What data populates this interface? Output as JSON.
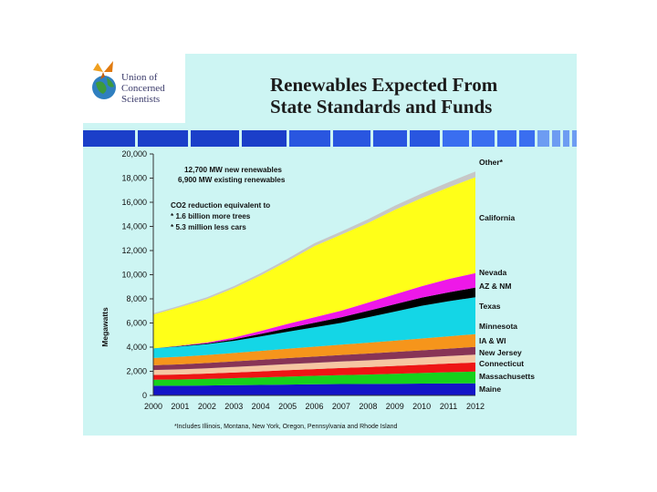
{
  "logo": {
    "lines": [
      "Union of",
      "Concerned",
      "Scientists"
    ]
  },
  "title": {
    "line1": "Renewables Expected From",
    "line2": "State Standards and Funds"
  },
  "annotations": {
    "line1": "12,700 MW new renewables",
    "line2": "6,900 MW existing renewables",
    "line3": "CO2 reduction equivalent to",
    "line4": "* 1.6 billion more trees",
    "line5": "* 5.3 million less cars"
  },
  "footnote": "*Includes Illinois, Montana, New York, Oregon, Pennsylvania and Rhode Island",
  "colors": {
    "slide_bg": "#cdf5f3",
    "banner": [
      "#1b3fc9",
      "#2956e0",
      "#3a6ef0",
      "#6d9cf2",
      "#a8c6f0"
    ]
  },
  "chart_data": {
    "type": "area",
    "stacked": true,
    "title": "Renewables Expected From State Standards and Funds",
    "xlabel": "",
    "ylabel": "Megawatts",
    "ylim": [
      0,
      20000
    ],
    "yticks": [
      0,
      2000,
      4000,
      6000,
      8000,
      10000,
      12000,
      14000,
      16000,
      18000,
      20000
    ],
    "ytick_labels": [
      "0",
      "2,000",
      "4,000",
      "6,000",
      "8,000",
      "10,000",
      "12,000",
      "14,000",
      "16,000",
      "18,000",
      "20,000"
    ],
    "x": [
      "2000",
      "2001",
      "2002",
      "2003",
      "2004",
      "2005",
      "2006",
      "2007",
      "2008",
      "2009",
      "2010",
      "2011",
      "2012"
    ],
    "series": [
      {
        "name": "Maine",
        "color": "#1414c8",
        "values": [
          800,
          800,
          820,
          850,
          870,
          900,
          920,
          940,
          950,
          960,
          980,
          990,
          1000
        ]
      },
      {
        "name": "Massachusetts",
        "color": "#16d11c",
        "values": [
          500,
          520,
          550,
          580,
          620,
          660,
          700,
          740,
          780,
          830,
          880,
          930,
          980
        ]
      },
      {
        "name": "Connecticut",
        "color": "#ee1515",
        "values": [
          400,
          420,
          440,
          470,
          500,
          530,
          560,
          590,
          620,
          650,
          680,
          720,
          750
        ]
      },
      {
        "name": "New Jersey",
        "color": "#f6c6a2",
        "values": [
          400,
          420,
          440,
          460,
          480,
          500,
          520,
          540,
          560,
          580,
          600,
          620,
          650
        ]
      },
      {
        "name": "IA & WI",
        "color": "#883456",
        "values": [
          400,
          420,
          440,
          460,
          480,
          500,
          520,
          540,
          560,
          580,
          600,
          620,
          640
        ]
      },
      {
        "name": "Minnesota",
        "color": "#f6951b",
        "values": [
          600,
          630,
          660,
          700,
          740,
          780,
          820,
          860,
          900,
          940,
          980,
          1020,
          1060
        ]
      },
      {
        "name": "Texas",
        "color": "#14d6e6",
        "values": [
          800,
          850,
          900,
          1000,
          1200,
          1400,
          1600,
          1800,
          2100,
          2400,
          2700,
          2900,
          3050
        ]
      },
      {
        "name": "AZ & NM",
        "color": "#000000",
        "values": [
          0,
          30,
          60,
          120,
          200,
          300,
          380,
          460,
          540,
          620,
          680,
          740,
          800
        ]
      },
      {
        "name": "Nevada",
        "color": "#ee18e8",
        "values": [
          0,
          30,
          80,
          150,
          250,
          350,
          450,
          550,
          680,
          820,
          950,
          1100,
          1200
        ]
      },
      {
        "name": "California",
        "color": "#ffff18",
        "values": [
          2800,
          3200,
          3600,
          4100,
          4600,
          5200,
          5900,
          6300,
          6600,
          7000,
          7300,
          7600,
          7950
        ]
      },
      {
        "name": "Other*",
        "color": "#c7c7c7",
        "values": [
          100,
          120,
          140,
          160,
          180,
          200,
          230,
          260,
          300,
          340,
          380,
          420,
          470
        ]
      }
    ]
  }
}
